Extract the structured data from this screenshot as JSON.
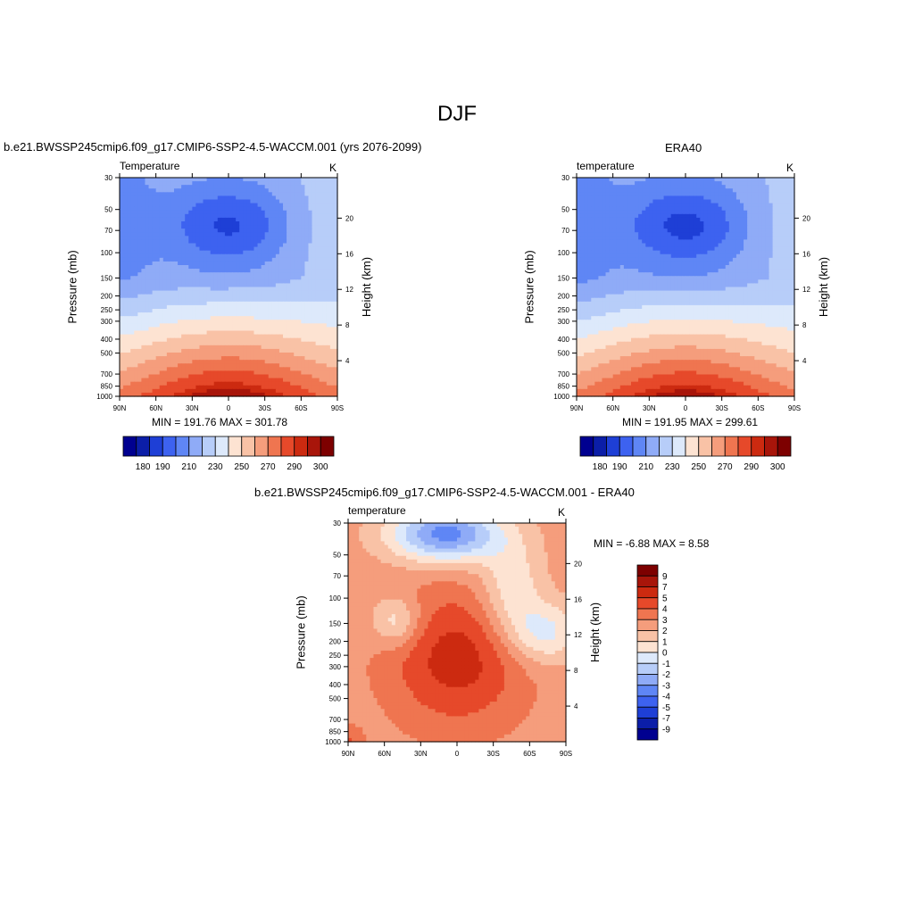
{
  "page": {
    "title": "DJF"
  },
  "panels": [
    {
      "subtitle": "b.e21.BWSSP245cmip6.f09_g17.CMIP6-SSP2-4.5-WACCM.001 (yrs 2076-2099)",
      "left_label": "Temperature",
      "right_label": "K",
      "stats": "MIN = 191.76  MAX = 301.78"
    },
    {
      "subtitle": "ERA40",
      "left_label": "temperature",
      "right_label": "K",
      "stats": "MIN = 191.95  MAX = 299.61"
    },
    {
      "subtitle": "b.e21.BWSSP245cmip6.f09_g17.CMIP6-SSP2-4.5-WACCM.001 - ERA40",
      "left_label": "temperature",
      "right_label": "K",
      "stats": "MIN =  -6.88  MAX =   8.58"
    }
  ],
  "axes": {
    "ylabel_left": "Pressure (mb)",
    "ylabel_right": "Height (km)",
    "pressure_ticks": [
      "30",
      "50",
      "70",
      "100",
      "150",
      "200",
      "250",
      "300",
      "400",
      "500",
      "700",
      "850",
      "1000"
    ],
    "height_ticks": [
      "20",
      "16",
      "12",
      "8",
      "4"
    ],
    "lat_ticks": [
      "90N",
      "60N",
      "30N",
      "0",
      "30S",
      "60S",
      "90S"
    ]
  },
  "colorbars": {
    "abs_labels": [
      "180",
      "190",
      "210",
      "230",
      "250",
      "270",
      "290",
      "300"
    ],
    "abs_colors": [
      "#000090",
      "#0b1ea8",
      "#1e3fd6",
      "#3d62f0",
      "#5f86f5",
      "#8fabf7",
      "#b7cdf9",
      "#dde9fb",
      "#fde3d2",
      "#f9c2a6",
      "#f59d7c",
      "#ef7550",
      "#e6492a",
      "#cc2a10",
      "#a8150a",
      "#7d0000"
    ],
    "diff_labels": [
      "9",
      "7",
      "5",
      "4",
      "3",
      "2",
      "1",
      "0",
      "-1",
      "-2",
      "-3",
      "-4",
      "-5",
      "-7",
      "-9"
    ],
    "diff_colors": [
      "#7d0000",
      "#a8150a",
      "#cc2a10",
      "#e6492a",
      "#ef7550",
      "#f59d7c",
      "#f9c2a6",
      "#fde3d2",
      "#dde9fb",
      "#b7cdf9",
      "#8fabf7",
      "#5f86f5",
      "#3d62f0",
      "#1e3fd6",
      "#0b1ea8",
      "#000090"
    ]
  },
  "chart_data": [
    {
      "type": "heatmap",
      "title": "b.e21.BWSSP245cmip6.f09_g17.CMIP6-SSP2-4.5-WACCM.001 (yrs 2076-2099)",
      "xlabel": "",
      "ylabel": "Pressure (mb)",
      "ylabel_right": "Height (km)",
      "x_ticks": [
        "90N",
        "60N",
        "30N",
        "0",
        "30S",
        "60S",
        "90S"
      ],
      "xlim": [
        90,
        -90
      ],
      "ylim": [
        1000,
        30
      ],
      "y_scale": "log",
      "units": "K",
      "min": 191.76,
      "max": 301.78,
      "grid": false
    },
    {
      "type": "heatmap",
      "title": "ERA40",
      "xlabel": "",
      "ylabel": "Pressure (mb)",
      "ylabel_right": "Height (km)",
      "x_ticks": [
        "90N",
        "60N",
        "30N",
        "0",
        "30S",
        "60S",
        "90S"
      ],
      "xlim": [
        90,
        -90
      ],
      "ylim": [
        1000,
        30
      ],
      "y_scale": "log",
      "units": "K",
      "min": 191.95,
      "max": 299.61,
      "grid": false
    },
    {
      "type": "heatmap",
      "title": "b.e21.BWSSP245cmip6.f09_g17.CMIP6-SSP2-4.5-WACCM.001 - ERA40",
      "xlabel": "",
      "ylabel": "Pressure (mb)",
      "ylabel_right": "Height (km)",
      "x_ticks": [
        "90N",
        "60N",
        "30N",
        "0",
        "30S",
        "60S",
        "90S"
      ],
      "xlim": [
        90,
        -90
      ],
      "ylim": [
        1000,
        30
      ],
      "y_scale": "log",
      "units": "K",
      "min": -6.88,
      "max": 8.58,
      "grid": false
    }
  ]
}
